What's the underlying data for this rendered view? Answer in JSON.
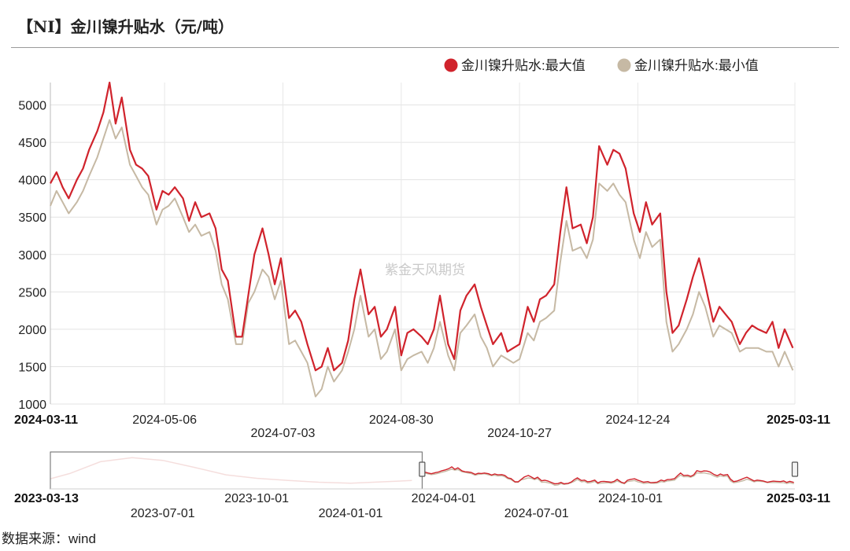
{
  "title": "【NI】金川镍升贴水（元/吨）",
  "source": "数据来源：wind",
  "watermark": "紫金天风期货",
  "chart_data": {
    "type": "line",
    "ylim": [
      1000,
      5300
    ],
    "yticks": [
      1000,
      1500,
      2000,
      2500,
      3000,
      3500,
      4000,
      4500,
      5000
    ],
    "xrange": [
      "2024-03-11",
      "2025-03-11"
    ],
    "xticks": [
      {
        "label": "2024-03-11",
        "date": "2024-03-11",
        "row": 0,
        "bold": true
      },
      {
        "label": "2024-05-06",
        "date": "2024-05-06",
        "row": 0,
        "bold": false
      },
      {
        "label": "2024-07-03",
        "date": "2024-07-03",
        "row": 1,
        "bold": false
      },
      {
        "label": "2024-08-30",
        "date": "2024-08-30",
        "row": 0,
        "bold": false
      },
      {
        "label": "2024-10-27",
        "date": "2024-10-27",
        "row": 1,
        "bold": false
      },
      {
        "label": "2024-12-24",
        "date": "2024-12-24",
        "row": 0,
        "bold": false
      },
      {
        "label": "2025-03-11",
        "date": "2025-03-11",
        "row": 0,
        "bold": true
      }
    ],
    "grid": true,
    "legend_position": "top-right",
    "colors": {
      "max": "#d0232c",
      "min": "#c6b9a4"
    },
    "x": [
      "2024-03-11",
      "2024-03-14",
      "2024-03-17",
      "2024-03-20",
      "2024-03-24",
      "2024-03-27",
      "2024-03-30",
      "2024-04-03",
      "2024-04-06",
      "2024-04-09",
      "2024-04-12",
      "2024-04-15",
      "2024-04-19",
      "2024-04-22",
      "2024-04-25",
      "2024-04-28",
      "2024-05-02",
      "2024-05-05",
      "2024-05-08",
      "2024-05-11",
      "2024-05-15",
      "2024-05-18",
      "2024-05-21",
      "2024-05-24",
      "2024-05-28",
      "2024-05-31",
      "2024-06-03",
      "2024-06-06",
      "2024-06-10",
      "2024-06-13",
      "2024-06-16",
      "2024-06-19",
      "2024-06-23",
      "2024-06-26",
      "2024-06-29",
      "2024-07-02",
      "2024-07-06",
      "2024-07-09",
      "2024-07-12",
      "2024-07-15",
      "2024-07-19",
      "2024-07-22",
      "2024-07-25",
      "2024-07-28",
      "2024-08-01",
      "2024-08-04",
      "2024-08-07",
      "2024-08-10",
      "2024-08-14",
      "2024-08-17",
      "2024-08-20",
      "2024-08-23",
      "2024-08-27",
      "2024-08-30",
      "2024-09-02",
      "2024-09-05",
      "2024-09-09",
      "2024-09-12",
      "2024-09-15",
      "2024-09-18",
      "2024-09-22",
      "2024-09-25",
      "2024-09-28",
      "2024-10-01",
      "2024-10-05",
      "2024-10-08",
      "2024-10-11",
      "2024-10-14",
      "2024-10-18",
      "2024-10-21",
      "2024-10-24",
      "2024-10-27",
      "2024-10-31",
      "2024-11-03",
      "2024-11-06",
      "2024-11-09",
      "2024-11-13",
      "2024-11-16",
      "2024-11-19",
      "2024-11-22",
      "2024-11-26",
      "2024-11-29",
      "2024-12-02",
      "2024-12-05",
      "2024-12-09",
      "2024-12-12",
      "2024-12-15",
      "2024-12-18",
      "2024-12-22",
      "2024-12-25",
      "2024-12-28",
      "2024-12-31",
      "2025-01-04",
      "2025-01-07",
      "2025-01-10",
      "2025-01-13",
      "2025-01-17",
      "2025-01-20",
      "2025-01-23",
      "2025-01-26",
      "2025-01-30",
      "2025-02-02",
      "2025-02-05",
      "2025-02-08",
      "2025-02-12",
      "2025-02-15",
      "2025-02-18",
      "2025-02-21",
      "2025-02-25",
      "2025-02-28",
      "2025-03-03",
      "2025-03-06",
      "2025-03-10"
    ],
    "series": [
      {
        "name": "金川镍升贴水:最大值",
        "key": "max",
        "values": [
          3950,
          4100,
          3900,
          3750,
          4000,
          4150,
          4400,
          4650,
          4900,
          5300,
          4750,
          5100,
          4400,
          4200,
          4150,
          4050,
          3600,
          3850,
          3800,
          3900,
          3750,
          3450,
          3700,
          3500,
          3550,
          3350,
          2800,
          2650,
          1900,
          1900,
          2450,
          3000,
          3350,
          3000,
          2600,
          2950,
          2150,
          2250,
          2100,
          1800,
          1450,
          1500,
          1750,
          1450,
          1550,
          1850,
          2400,
          2800,
          2200,
          2300,
          1900,
          2000,
          2300,
          1650,
          1950,
          2000,
          1900,
          1800,
          2000,
          2450,
          1800,
          1600,
          2250,
          2450,
          2600,
          2300,
          2050,
          1800,
          1950,
          1700,
          1750,
          1800,
          2300,
          2100,
          2400,
          2450,
          2600,
          3300,
          3900,
          3350,
          3400,
          3150,
          3500,
          4450,
          4200,
          4400,
          4350,
          4150,
          3550,
          3300,
          3700,
          3400,
          3550,
          2500,
          1950,
          2050,
          2400,
          2700,
          2950,
          2600,
          2100,
          2300,
          2200,
          2100,
          1800,
          1950,
          2050,
          2000,
          1950,
          2100,
          1750,
          2000,
          1750
        ],
        "label_note": ""
      },
      {
        "name": "金川镍升贴水:最小值",
        "key": "min",
        "values": [
          3650,
          3850,
          3700,
          3550,
          3700,
          3850,
          4050,
          4300,
          4550,
          4800,
          4550,
          4700,
          4200,
          4050,
          3900,
          3800,
          3400,
          3600,
          3650,
          3750,
          3500,
          3300,
          3400,
          3250,
          3300,
          3050,
          2600,
          2400,
          1800,
          1800,
          2350,
          2500,
          2800,
          2700,
          2400,
          2650,
          1800,
          1850,
          1700,
          1550,
          1100,
          1200,
          1500,
          1300,
          1450,
          1700,
          2000,
          2450,
          1900,
          2000,
          1600,
          1700,
          2000,
          1450,
          1600,
          1650,
          1700,
          1550,
          1750,
          2100,
          1650,
          1450,
          1950,
          2050,
          2200,
          1900,
          1750,
          1500,
          1650,
          1600,
          1550,
          1600,
          1950,
          1850,
          2100,
          2150,
          2250,
          2900,
          3450,
          3050,
          3100,
          2950,
          3200,
          3950,
          3850,
          3950,
          3800,
          3700,
          3200,
          2950,
          3300,
          3100,
          3200,
          2100,
          1700,
          1800,
          2000,
          2200,
          2500,
          2300,
          1900,
          2050,
          2000,
          1950,
          1700,
          1750,
          1750,
          1750,
          1700,
          1700,
          1500,
          1700,
          1450
        ]
      }
    ],
    "navigator": {
      "range": [
        "2023-03-13",
        "2025-03-11"
      ],
      "selected": [
        "2024-03-11",
        "2025-03-11"
      ],
      "ticks": [
        {
          "label": "2023-03-13",
          "date": "2023-03-13",
          "row": 0,
          "bold": true
        },
        {
          "label": "2023-07-01",
          "date": "2023-07-01",
          "row": 1,
          "bold": false
        },
        {
          "label": "2023-10-01",
          "date": "2023-10-01",
          "row": 0,
          "bold": false
        },
        {
          "label": "2024-01-01",
          "date": "2024-01-01",
          "row": 1,
          "bold": false
        },
        {
          "label": "2024-04-01",
          "date": "2024-04-01",
          "row": 0,
          "bold": false
        },
        {
          "label": "2024-07-01",
          "date": "2024-07-01",
          "row": 1,
          "bold": false
        },
        {
          "label": "2024-10-01",
          "date": "2024-10-01",
          "row": 0,
          "bold": false
        },
        {
          "label": "2025-03-11",
          "date": "2025-03-11",
          "row": 0,
          "bold": true
        }
      ],
      "early_series": {
        "x": [
          "2023-03-13",
          "2023-04-01",
          "2023-05-01",
          "2023-06-01",
          "2023-07-01",
          "2023-08-01",
          "2023-09-01",
          "2023-10-01",
          "2023-11-01",
          "2023-12-01",
          "2024-01-01",
          "2024-02-01",
          "2024-03-01"
        ],
        "values": [
          2600,
          3800,
          6500,
          7400,
          6800,
          5200,
          3500,
          2700,
          2200,
          1800,
          1600,
          1900,
          2200
        ]
      }
    }
  }
}
